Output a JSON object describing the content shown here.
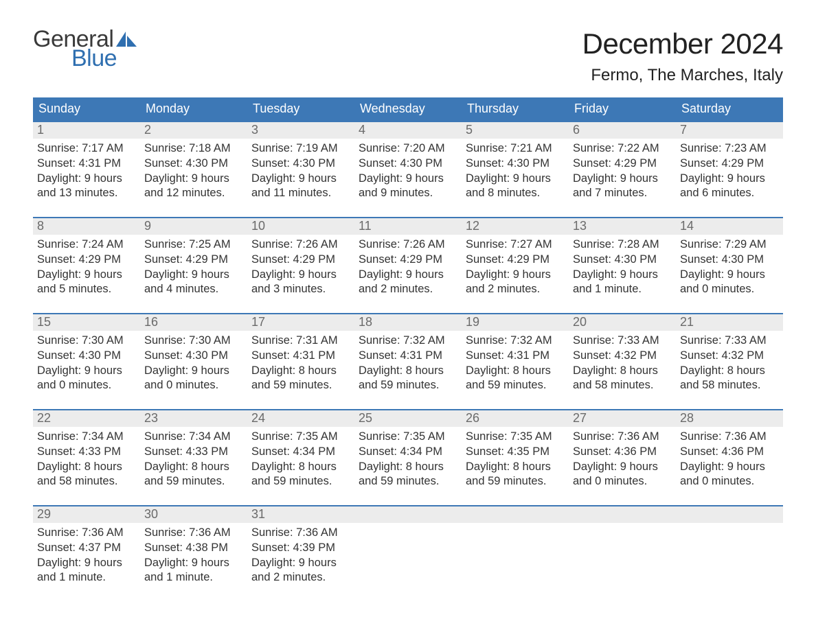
{
  "brand": {
    "word1": "General",
    "word2": "Blue",
    "accent_color": "#2f6fb0",
    "text_color": "#3a3a3a"
  },
  "title": "December 2024",
  "location": "Fermo, The Marches, Italy",
  "colors": {
    "header_bg": "#3d78b6",
    "header_text": "#ffffff",
    "daynum_bg": "#ececec",
    "daynum_color": "#6a6a6a",
    "body_text": "#333333",
    "border_top": "#3d78b6"
  },
  "weekdays": [
    "Sunday",
    "Monday",
    "Tuesday",
    "Wednesday",
    "Thursday",
    "Friday",
    "Saturday"
  ],
  "weeks": [
    [
      {
        "n": "1",
        "sunrise": "Sunrise: 7:17 AM",
        "sunset": "Sunset: 4:31 PM",
        "dl1": "Daylight: 9 hours",
        "dl2": "and 13 minutes."
      },
      {
        "n": "2",
        "sunrise": "Sunrise: 7:18 AM",
        "sunset": "Sunset: 4:30 PM",
        "dl1": "Daylight: 9 hours",
        "dl2": "and 12 minutes."
      },
      {
        "n": "3",
        "sunrise": "Sunrise: 7:19 AM",
        "sunset": "Sunset: 4:30 PM",
        "dl1": "Daylight: 9 hours",
        "dl2": "and 11 minutes."
      },
      {
        "n": "4",
        "sunrise": "Sunrise: 7:20 AM",
        "sunset": "Sunset: 4:30 PM",
        "dl1": "Daylight: 9 hours",
        "dl2": "and 9 minutes."
      },
      {
        "n": "5",
        "sunrise": "Sunrise: 7:21 AM",
        "sunset": "Sunset: 4:30 PM",
        "dl1": "Daylight: 9 hours",
        "dl2": "and 8 minutes."
      },
      {
        "n": "6",
        "sunrise": "Sunrise: 7:22 AM",
        "sunset": "Sunset: 4:29 PM",
        "dl1": "Daylight: 9 hours",
        "dl2": "and 7 minutes."
      },
      {
        "n": "7",
        "sunrise": "Sunrise: 7:23 AM",
        "sunset": "Sunset: 4:29 PM",
        "dl1": "Daylight: 9 hours",
        "dl2": "and 6 minutes."
      }
    ],
    [
      {
        "n": "8",
        "sunrise": "Sunrise: 7:24 AM",
        "sunset": "Sunset: 4:29 PM",
        "dl1": "Daylight: 9 hours",
        "dl2": "and 5 minutes."
      },
      {
        "n": "9",
        "sunrise": "Sunrise: 7:25 AM",
        "sunset": "Sunset: 4:29 PM",
        "dl1": "Daylight: 9 hours",
        "dl2": "and 4 minutes."
      },
      {
        "n": "10",
        "sunrise": "Sunrise: 7:26 AM",
        "sunset": "Sunset: 4:29 PM",
        "dl1": "Daylight: 9 hours",
        "dl2": "and 3 minutes."
      },
      {
        "n": "11",
        "sunrise": "Sunrise: 7:26 AM",
        "sunset": "Sunset: 4:29 PM",
        "dl1": "Daylight: 9 hours",
        "dl2": "and 2 minutes."
      },
      {
        "n": "12",
        "sunrise": "Sunrise: 7:27 AM",
        "sunset": "Sunset: 4:29 PM",
        "dl1": "Daylight: 9 hours",
        "dl2": "and 2 minutes."
      },
      {
        "n": "13",
        "sunrise": "Sunrise: 7:28 AM",
        "sunset": "Sunset: 4:30 PM",
        "dl1": "Daylight: 9 hours",
        "dl2": "and 1 minute."
      },
      {
        "n": "14",
        "sunrise": "Sunrise: 7:29 AM",
        "sunset": "Sunset: 4:30 PM",
        "dl1": "Daylight: 9 hours",
        "dl2": "and 0 minutes."
      }
    ],
    [
      {
        "n": "15",
        "sunrise": "Sunrise: 7:30 AM",
        "sunset": "Sunset: 4:30 PM",
        "dl1": "Daylight: 9 hours",
        "dl2": "and 0 minutes."
      },
      {
        "n": "16",
        "sunrise": "Sunrise: 7:30 AM",
        "sunset": "Sunset: 4:30 PM",
        "dl1": "Daylight: 9 hours",
        "dl2": "and 0 minutes."
      },
      {
        "n": "17",
        "sunrise": "Sunrise: 7:31 AM",
        "sunset": "Sunset: 4:31 PM",
        "dl1": "Daylight: 8 hours",
        "dl2": "and 59 minutes."
      },
      {
        "n": "18",
        "sunrise": "Sunrise: 7:32 AM",
        "sunset": "Sunset: 4:31 PM",
        "dl1": "Daylight: 8 hours",
        "dl2": "and 59 minutes."
      },
      {
        "n": "19",
        "sunrise": "Sunrise: 7:32 AM",
        "sunset": "Sunset: 4:31 PM",
        "dl1": "Daylight: 8 hours",
        "dl2": "and 59 minutes."
      },
      {
        "n": "20",
        "sunrise": "Sunrise: 7:33 AM",
        "sunset": "Sunset: 4:32 PM",
        "dl1": "Daylight: 8 hours",
        "dl2": "and 58 minutes."
      },
      {
        "n": "21",
        "sunrise": "Sunrise: 7:33 AM",
        "sunset": "Sunset: 4:32 PM",
        "dl1": "Daylight: 8 hours",
        "dl2": "and 58 minutes."
      }
    ],
    [
      {
        "n": "22",
        "sunrise": "Sunrise: 7:34 AM",
        "sunset": "Sunset: 4:33 PM",
        "dl1": "Daylight: 8 hours",
        "dl2": "and 58 minutes."
      },
      {
        "n": "23",
        "sunrise": "Sunrise: 7:34 AM",
        "sunset": "Sunset: 4:33 PM",
        "dl1": "Daylight: 8 hours",
        "dl2": "and 59 minutes."
      },
      {
        "n": "24",
        "sunrise": "Sunrise: 7:35 AM",
        "sunset": "Sunset: 4:34 PM",
        "dl1": "Daylight: 8 hours",
        "dl2": "and 59 minutes."
      },
      {
        "n": "25",
        "sunrise": "Sunrise: 7:35 AM",
        "sunset": "Sunset: 4:34 PM",
        "dl1": "Daylight: 8 hours",
        "dl2": "and 59 minutes."
      },
      {
        "n": "26",
        "sunrise": "Sunrise: 7:35 AM",
        "sunset": "Sunset: 4:35 PM",
        "dl1": "Daylight: 8 hours",
        "dl2": "and 59 minutes."
      },
      {
        "n": "27",
        "sunrise": "Sunrise: 7:36 AM",
        "sunset": "Sunset: 4:36 PM",
        "dl1": "Daylight: 9 hours",
        "dl2": "and 0 minutes."
      },
      {
        "n": "28",
        "sunrise": "Sunrise: 7:36 AM",
        "sunset": "Sunset: 4:36 PM",
        "dl1": "Daylight: 9 hours",
        "dl2": "and 0 minutes."
      }
    ],
    [
      {
        "n": "29",
        "sunrise": "Sunrise: 7:36 AM",
        "sunset": "Sunset: 4:37 PM",
        "dl1": "Daylight: 9 hours",
        "dl2": "and 1 minute."
      },
      {
        "n": "30",
        "sunrise": "Sunrise: 7:36 AM",
        "sunset": "Sunset: 4:38 PM",
        "dl1": "Daylight: 9 hours",
        "dl2": "and 1 minute."
      },
      {
        "n": "31",
        "sunrise": "Sunrise: 7:36 AM",
        "sunset": "Sunset: 4:39 PM",
        "dl1": "Daylight: 9 hours",
        "dl2": "and 2 minutes."
      },
      {
        "empty": true
      },
      {
        "empty": true
      },
      {
        "empty": true
      },
      {
        "empty": true
      }
    ]
  ]
}
